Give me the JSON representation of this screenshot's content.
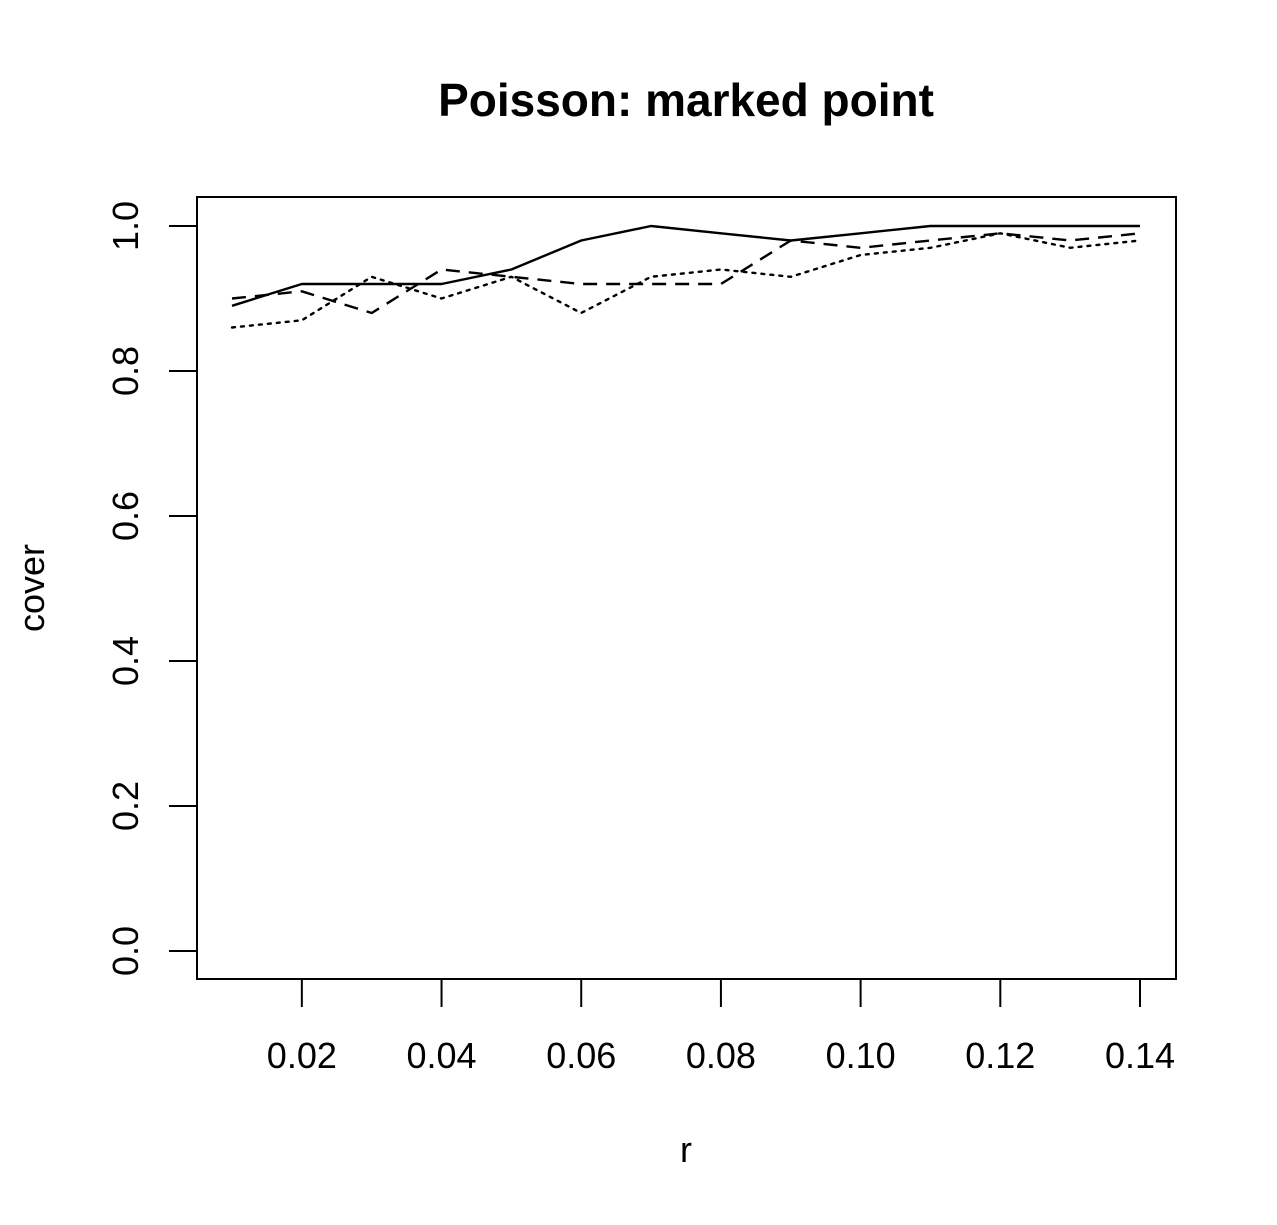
{
  "chart_data": {
    "type": "line",
    "title": "Poisson: marked point",
    "xlabel": "r",
    "ylabel": "cover",
    "xlim": [
      0.01,
      0.14
    ],
    "ylim": [
      0,
      1
    ],
    "xticks": [
      0.02,
      0.04,
      0.06,
      0.08,
      0.1,
      0.12,
      0.14
    ],
    "xtick_labels": [
      "0.02",
      "0.04",
      "0.06",
      "0.08",
      "0.10",
      "0.12",
      "0.14"
    ],
    "yticks": [
      0.0,
      0.2,
      0.4,
      0.6,
      0.8,
      1.0
    ],
    "ytick_labels": [
      "0.0",
      "0.2",
      "0.4",
      "0.6",
      "0.8",
      "1.0"
    ],
    "grid": false,
    "legend": "none",
    "x": [
      0.01,
      0.02,
      0.03,
      0.04,
      0.05,
      0.06,
      0.07,
      0.08,
      0.09,
      0.1,
      0.11,
      0.12,
      0.13,
      0.14
    ],
    "series": [
      {
        "style": "solid",
        "values": [
          0.89,
          0.92,
          0.92,
          0.92,
          0.94,
          0.98,
          1.0,
          0.99,
          0.98,
          0.99,
          1.0,
          1.0,
          1.0,
          1.0
        ]
      },
      {
        "style": "dashed",
        "values": [
          0.9,
          0.91,
          0.88,
          0.94,
          0.93,
          0.92,
          0.92,
          0.92,
          0.98,
          0.97,
          0.98,
          0.99,
          0.98,
          0.99
        ]
      },
      {
        "style": "dotted",
        "values": [
          0.86,
          0.87,
          0.93,
          0.9,
          0.93,
          0.88,
          0.93,
          0.94,
          0.93,
          0.96,
          0.97,
          0.99,
          0.97,
          0.98
        ]
      }
    ]
  }
}
